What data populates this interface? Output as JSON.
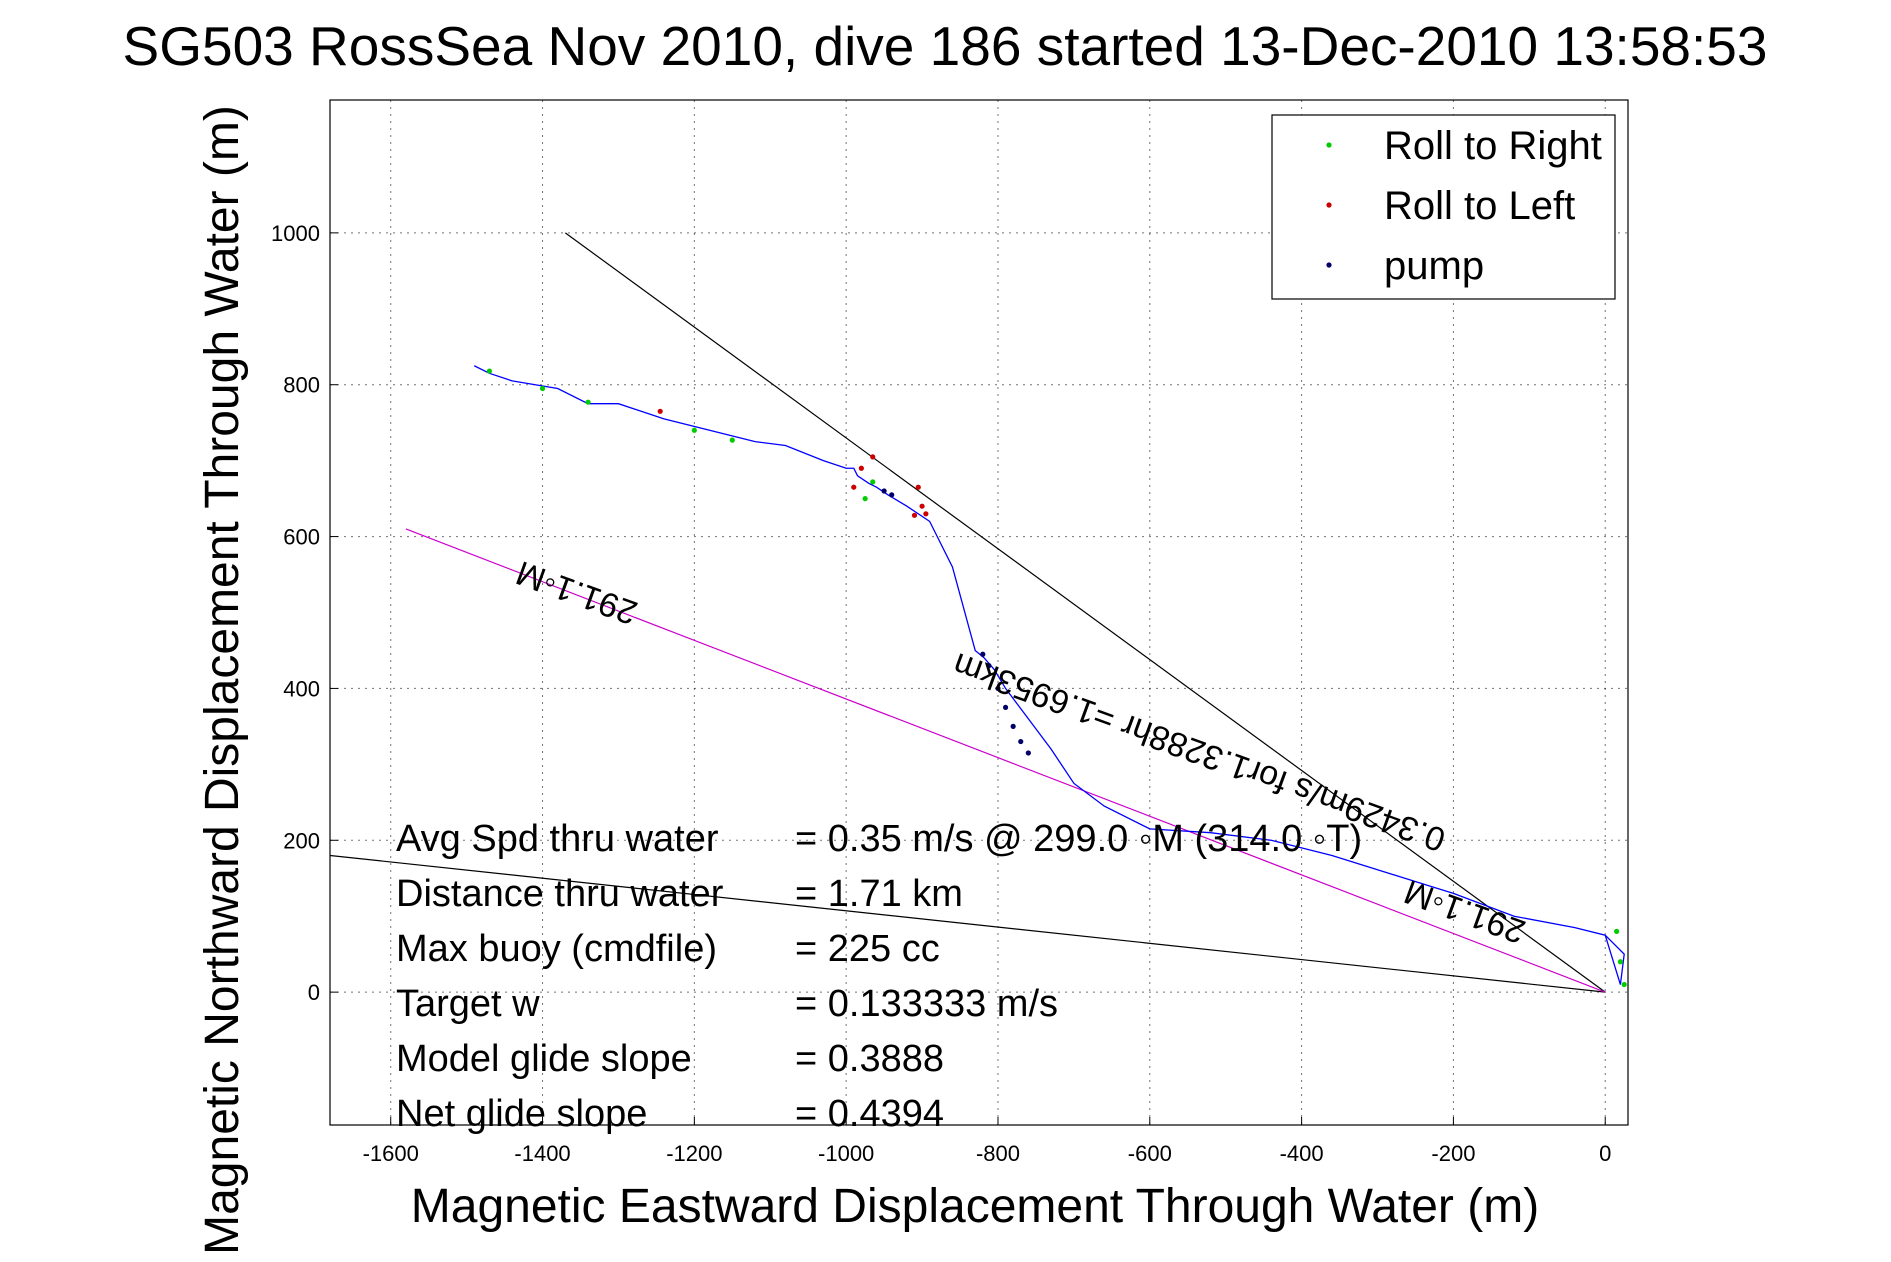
{
  "chart_data": {
    "type": "line",
    "title": "SG503 RossSea Nov 2010, dive 186 started 13-Dec-2010 13:58:53",
    "xlabel": "Magnetic Eastward Displacement Through Water (m)",
    "ylabel": "Magnetic Northward Displacement Through Water (m)",
    "xlim": [
      -1680,
      30
    ],
    "ylim": [
      -175,
      1175
    ],
    "xticks": [
      -1600,
      -1400,
      -1200,
      -1000,
      -800,
      -600,
      -400,
      -200,
      0
    ],
    "yticks": [
      0,
      200,
      400,
      600,
      800,
      1000
    ],
    "grid": true,
    "legend_position": "top-right",
    "legend": [
      {
        "label": "Roll to Right",
        "color": "#00cc00"
      },
      {
        "label": "Roll to Left",
        "color": "#cc0000"
      },
      {
        "label": "pump",
        "color": "#000066"
      }
    ],
    "track": {
      "color": "#0000ff",
      "x": [
        0,
        25,
        20,
        0,
        -40,
        -120,
        -200,
        -280,
        -360,
        -440,
        -520,
        -600,
        -660,
        -700,
        -730,
        -760,
        -790,
        -805,
        -818,
        -830,
        -860,
        -890,
        -920,
        -945,
        -960,
        -970,
        -985,
        -990,
        -1000,
        -1030,
        -1080,
        -1120,
        -1180,
        -1240,
        -1300,
        -1340,
        -1380,
        -1440,
        -1470,
        -1490
      ],
      "y": [
        75,
        50,
        10,
        75,
        85,
        100,
        130,
        155,
        180,
        200,
        210,
        215,
        245,
        275,
        320,
        360,
        400,
        425,
        440,
        450,
        560,
        620,
        640,
        655,
        665,
        670,
        680,
        690,
        690,
        700,
        720,
        725,
        740,
        755,
        775,
        775,
        795,
        805,
        815,
        825
      ]
    },
    "lines": [
      {
        "name": "heading-line",
        "color": "#000000",
        "x1": 0,
        "y1": 0,
        "x2": -1370,
        "y2": 1000
      },
      {
        "name": "current-line",
        "color": "#000000",
        "x1": 0,
        "y1": 0,
        "x2": -1680,
        "y2": 180
      },
      {
        "name": "net-track-line",
        "color": "#cc00cc",
        "x1": 0,
        "y1": 0,
        "x2": -1580,
        "y2": 610
      }
    ],
    "roll_right_points": {
      "color": "#00cc00",
      "x": [
        -1470,
        -1400,
        -1340,
        -1200,
        -1150,
        -975,
        -965,
        15,
        20,
        25
      ],
      "y": [
        818,
        795,
        777,
        740,
        727,
        650,
        672,
        80,
        40,
        10
      ]
    },
    "roll_left_points": {
      "color": "#cc0000",
      "x": [
        -1245,
        -990,
        -980,
        -965,
        -905,
        -900,
        -895,
        -910
      ],
      "y": [
        765,
        665,
        690,
        705,
        665,
        640,
        630,
        628
      ]
    },
    "pump_points": {
      "color": "#000066",
      "x": [
        -950,
        -940,
        -820,
        -812,
        -800,
        -790,
        -780,
        -770,
        -760
      ],
      "y": [
        660,
        655,
        445,
        430,
        400,
        375,
        350,
        330,
        315
      ]
    },
    "annotations": [
      {
        "text": "291.1◦M",
        "x": -1350,
        "y": 540,
        "rotate": 200
      },
      {
        "text": "291.1◦M",
        "x": -180,
        "y": 120,
        "rotate": 200
      },
      {
        "text": "0.3429m/s for1.3288hr =1.6953km",
        "x": -530,
        "y": 330,
        "rotate": 200
      }
    ]
  },
  "stats": [
    {
      "label": "Avg Spd thru water",
      "value": "=  0.35 m/s @ 299.0 ◦M (314.0 ◦T)"
    },
    {
      "label": "Distance thru water",
      "value": "=  1.71 km"
    },
    {
      "label": "Max buoy (cmdfile)",
      "value": "= 225 cc"
    },
    {
      "label": "Target w",
      "value": "= 0.133333 m/s"
    },
    {
      "label": "Model glide slope",
      "value": "= 0.3888"
    },
    {
      "label": "Net glide slope",
      "value": "= 0.4394"
    }
  ]
}
